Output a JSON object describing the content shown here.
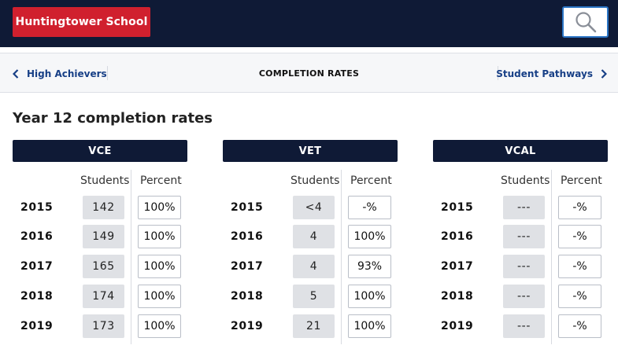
{
  "header": {
    "brand": "Huntingtower School",
    "search_icon": "search-icon"
  },
  "subnav": {
    "prev_label": "High Achievers",
    "current_label": "COMPLETION RATES",
    "next_label": "Student Pathways"
  },
  "section_title": "Year 12 completion rates",
  "column_headers": {
    "students": "Students",
    "percent": "Percent"
  },
  "panels": [
    {
      "title": "VCE",
      "rows": [
        {
          "year": "2015",
          "students": "142",
          "percent": "100%"
        },
        {
          "year": "2016",
          "students": "149",
          "percent": "100%"
        },
        {
          "year": "2017",
          "students": "165",
          "percent": "100%"
        },
        {
          "year": "2018",
          "students": "174",
          "percent": "100%"
        },
        {
          "year": "2019",
          "students": "173",
          "percent": "100%"
        }
      ]
    },
    {
      "title": "VET",
      "rows": [
        {
          "year": "2015",
          "students": "<4",
          "percent": "-%"
        },
        {
          "year": "2016",
          "students": "4",
          "percent": "100%"
        },
        {
          "year": "2017",
          "students": "4",
          "percent": "93%"
        },
        {
          "year": "2018",
          "students": "5",
          "percent": "100%"
        },
        {
          "year": "2019",
          "students": "21",
          "percent": "100%"
        }
      ]
    },
    {
      "title": "VCAL",
      "rows": [
        {
          "year": "2015",
          "students": "---",
          "percent": "-%"
        },
        {
          "year": "2016",
          "students": "---",
          "percent": "-%"
        },
        {
          "year": "2017",
          "students": "---",
          "percent": "-%"
        },
        {
          "year": "2018",
          "students": "---",
          "percent": "-%"
        },
        {
          "year": "2019",
          "students": "---",
          "percent": "-%"
        }
      ]
    }
  ]
}
